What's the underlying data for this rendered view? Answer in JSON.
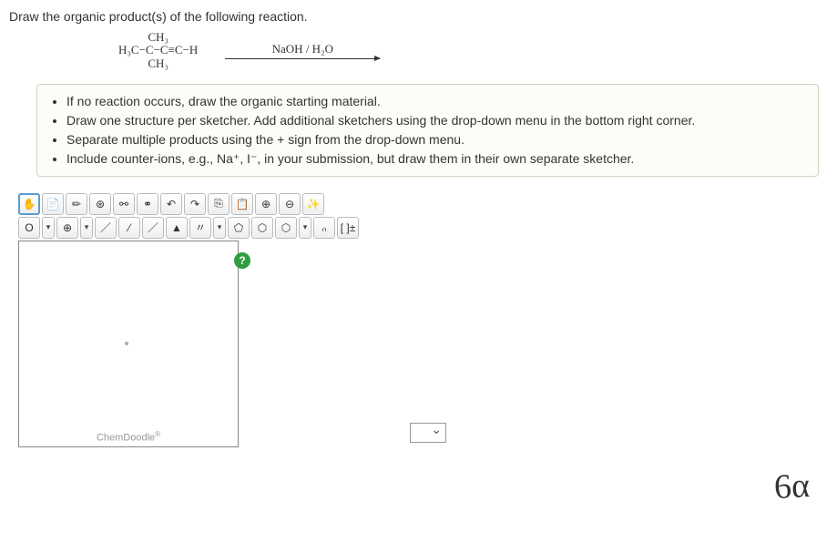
{
  "prompt": "Draw the organic product(s) of the following reaction.",
  "reactant": {
    "top": "CH₃",
    "mid": "H₃C−C−C≡C−H",
    "bot": "CH₃"
  },
  "arrow": {
    "reagent": "NaOH / H₂O"
  },
  "instructions": [
    "If no reaction occurs, draw the organic starting material.",
    "Draw one structure per sketcher. Add additional sketchers using the drop-down menu in the bottom right corner.",
    "Separate multiple products using the + sign from the drop-down menu.",
    "Include counter-ions, e.g., Na⁺, I⁻, in your submission, but draw them in their own separate sketcher."
  ],
  "toolbar1": {
    "hand": "✋",
    "lasso": "📄",
    "erase": "✏",
    "atom": "⊛",
    "chain1": "⚯",
    "chain2": "⚭",
    "undo": "↶",
    "redo": "↷",
    "copy": "⎘",
    "paste": "📋",
    "zoomin": "⊕",
    "zoomout": "⊖",
    "clean": "✨"
  },
  "toolbar2": {
    "oxygen": "O",
    "plus": "⊕",
    "bond1": "／",
    "bond2": "⁄",
    "bond3": "／",
    "wedge1": "▲",
    "wedge2": "〃",
    "ring5": "⬠",
    "ring6": "⬡",
    "ringS": "⬡",
    "subscript": "ₙ",
    "charge": "[ ]±"
  },
  "help": "?",
  "chemdoodle": "ChemDoodle",
  "extra_sketchers": {
    "visible_count": ""
  },
  "handwriting": "6α",
  "colors": {
    "instrBoxBg": "#fdfcf8",
    "instrBoxBorder": "#d7d2c4",
    "helpBadge": "#2e9e3f",
    "selectedBorder": "#5b9bd5"
  }
}
